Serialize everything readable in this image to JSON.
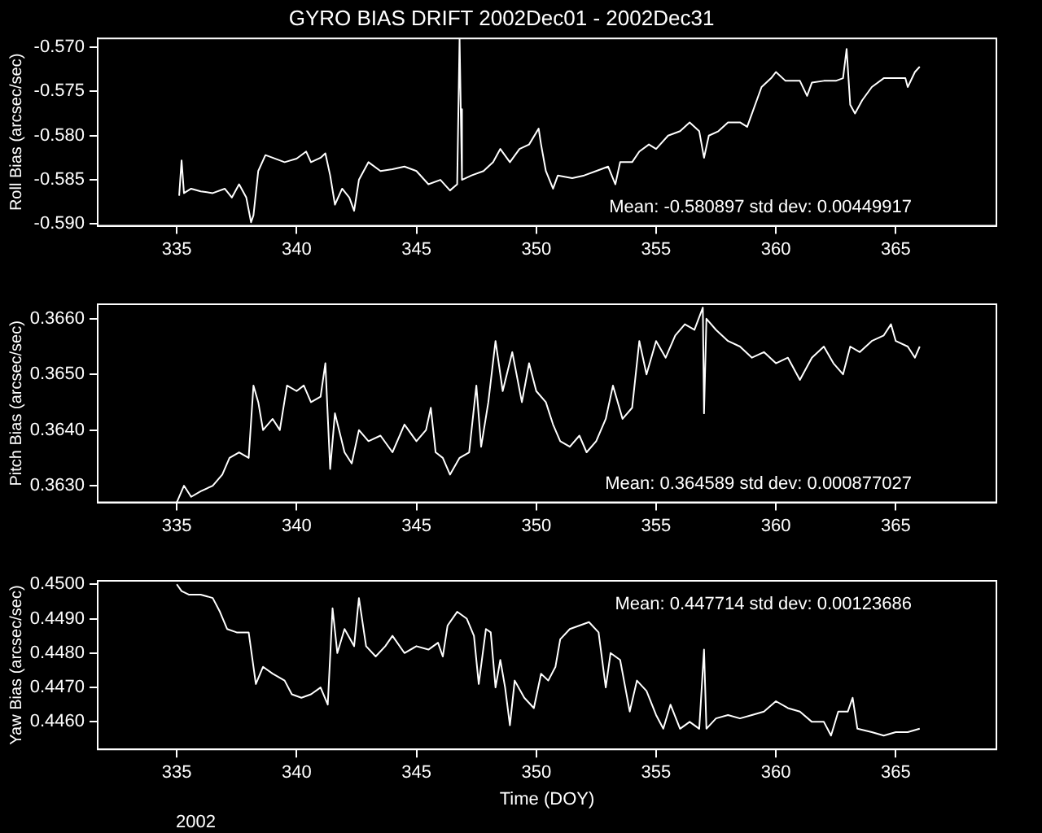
{
  "chart_data": [
    {
      "type": "line",
      "title": "GYRO BIAS DRIFT 2002Dec01 - 2002Dec31",
      "ylabel": "Roll Bias (arcsec/sec)",
      "color": "#ffffff",
      "marker": "none",
      "line_style": "solid",
      "xlim": [
        331.7,
        369.2
      ],
      "xticks": [
        335,
        340,
        345,
        350,
        355,
        360,
        365
      ],
      "ylim": [
        -0.5902,
        -0.569
      ],
      "yticks": [
        {
          "value": -0.59,
          "label": "-0.590"
        },
        {
          "value": -0.585,
          "label": "-0.585"
        },
        {
          "value": -0.58,
          "label": "-0.580"
        },
        {
          "value": -0.575,
          "label": "-0.575"
        },
        {
          "value": -0.57,
          "label": "-0.570"
        }
      ],
      "annotations": [
        "Mean: -0.580897 std dev: 0.00449917"
      ],
      "x": [
        335.1,
        335.2,
        335.3,
        335.6,
        336.0,
        336.5,
        337.0,
        337.3,
        337.6,
        337.9,
        338.1,
        338.2,
        338.4,
        338.7,
        339.0,
        339.5,
        340.0,
        340.4,
        340.6,
        341.0,
        341.2,
        341.4,
        341.6,
        341.9,
        342.2,
        342.4,
        342.6,
        343.0,
        343.5,
        344.0,
        344.5,
        345.0,
        345.5,
        346.0,
        346.4,
        346.7,
        346.8,
        346.85,
        346.9,
        347.3,
        347.8,
        348.2,
        348.5,
        348.9,
        349.3,
        349.7,
        350.1,
        350.2,
        350.4,
        350.7,
        350.9,
        351.5,
        352.0,
        352.5,
        353.0,
        353.3,
        353.5,
        354.0,
        354.3,
        354.7,
        355.0,
        355.5,
        356.0,
        356.4,
        356.8,
        357.0,
        357.2,
        357.6,
        358.0,
        358.5,
        358.8,
        359.0,
        359.4,
        359.8,
        360.0,
        360.4,
        361.0,
        361.3,
        361.5,
        362.0,
        362.5,
        362.8,
        362.95,
        363.1,
        363.3,
        363.6,
        364.0,
        364.5,
        365.0,
        365.4,
        365.5,
        365.8,
        366.0
      ],
      "values": [
        -0.5868,
        -0.5828,
        -0.5865,
        -0.586,
        -0.5863,
        -0.5865,
        -0.586,
        -0.587,
        -0.5855,
        -0.587,
        -0.5898,
        -0.589,
        -0.584,
        -0.5822,
        -0.5825,
        -0.583,
        -0.5826,
        -0.5818,
        -0.583,
        -0.5825,
        -0.582,
        -0.5845,
        -0.5878,
        -0.586,
        -0.587,
        -0.5885,
        -0.585,
        -0.583,
        -0.584,
        -0.5838,
        -0.5835,
        -0.584,
        -0.5855,
        -0.585,
        -0.5862,
        -0.5855,
        -0.569,
        -0.577,
        -0.585,
        -0.5845,
        -0.584,
        -0.583,
        -0.5815,
        -0.583,
        -0.5815,
        -0.581,
        -0.5792,
        -0.581,
        -0.584,
        -0.586,
        -0.5845,
        -0.5848,
        -0.5845,
        -0.584,
        -0.5835,
        -0.5855,
        -0.583,
        -0.583,
        -0.5818,
        -0.581,
        -0.5815,
        -0.58,
        -0.5795,
        -0.5785,
        -0.5795,
        -0.5825,
        -0.58,
        -0.5795,
        -0.5785,
        -0.5785,
        -0.579,
        -0.5775,
        -0.5745,
        -0.5735,
        -0.5728,
        -0.5738,
        -0.5738,
        -0.5755,
        -0.574,
        -0.5738,
        -0.5738,
        -0.5735,
        -0.5702,
        -0.5765,
        -0.5775,
        -0.576,
        -0.5745,
        -0.5735,
        -0.5735,
        -0.5735,
        -0.5745,
        -0.5728,
        -0.5722
      ]
    },
    {
      "type": "line",
      "ylabel": "Pitch Bias (arcsec/sec)",
      "color": "#ffffff",
      "marker": "none",
      "line_style": "solid",
      "xlim": [
        331.7,
        369.2
      ],
      "xticks": [
        335,
        340,
        345,
        350,
        355,
        360,
        365
      ],
      "ylim": [
        0.3627,
        0.36626
      ],
      "yticks": [
        {
          "value": 0.363,
          "label": "0.3630"
        },
        {
          "value": 0.364,
          "label": "0.3640"
        },
        {
          "value": 0.365,
          "label": "0.3650"
        },
        {
          "value": 0.366,
          "label": "0.3660"
        }
      ],
      "annotations": [
        "Mean: 0.364589 std dev: 0.000877027"
      ],
      "x": [
        335.0,
        335.3,
        335.6,
        336.0,
        336.5,
        336.9,
        337.2,
        337.6,
        338.0,
        338.2,
        338.4,
        338.6,
        339.0,
        339.3,
        339.6,
        340.0,
        340.3,
        340.6,
        341.0,
        341.2,
        341.4,
        341.6,
        342.0,
        342.3,
        342.6,
        343.0,
        343.5,
        344.0,
        344.5,
        345.0,
        345.4,
        345.6,
        345.8,
        346.1,
        346.4,
        346.8,
        347.2,
        347.5,
        347.7,
        348.0,
        348.3,
        348.6,
        349.0,
        349.4,
        349.7,
        350.0,
        350.4,
        350.7,
        351.0,
        351.4,
        351.8,
        352.1,
        352.5,
        352.9,
        353.2,
        353.6,
        354.0,
        354.3,
        354.6,
        355.0,
        355.4,
        355.8,
        356.2,
        356.6,
        356.95,
        357.0,
        357.1,
        357.5,
        358.0,
        358.5,
        359.0,
        359.5,
        360.0,
        360.5,
        361.0,
        361.5,
        362.0,
        362.4,
        362.8,
        363.1,
        363.5,
        364.0,
        364.5,
        364.8,
        365.0,
        365.5,
        365.8,
        366.0
      ],
      "values": [
        0.3627,
        0.363,
        0.3628,
        0.3629,
        0.363,
        0.3632,
        0.3635,
        0.3636,
        0.3635,
        0.3648,
        0.3645,
        0.364,
        0.3642,
        0.364,
        0.3648,
        0.3647,
        0.3648,
        0.3645,
        0.3646,
        0.3652,
        0.3633,
        0.3643,
        0.3636,
        0.3634,
        0.364,
        0.3638,
        0.3639,
        0.3636,
        0.3641,
        0.3638,
        0.364,
        0.3644,
        0.3636,
        0.3635,
        0.3632,
        0.3635,
        0.3636,
        0.3648,
        0.3637,
        0.3645,
        0.3656,
        0.3647,
        0.3654,
        0.3645,
        0.3652,
        0.3647,
        0.3645,
        0.3641,
        0.3638,
        0.3637,
        0.3639,
        0.3636,
        0.3638,
        0.3642,
        0.3648,
        0.3642,
        0.3644,
        0.3656,
        0.365,
        0.3656,
        0.3653,
        0.3657,
        0.3659,
        0.3658,
        0.3662,
        0.3643,
        0.366,
        0.3658,
        0.3656,
        0.3655,
        0.3653,
        0.3654,
        0.3652,
        0.3653,
        0.3649,
        0.3653,
        0.3655,
        0.3652,
        0.365,
        0.3655,
        0.3654,
        0.3656,
        0.3657,
        0.3659,
        0.3656,
        0.3655,
        0.3653,
        0.3655
      ]
    },
    {
      "type": "line",
      "ylabel": "Yaw Bias (arcsec/sec)",
      "xlabel": "Time (DOY)",
      "color": "#ffffff",
      "marker": "none",
      "line_style": "solid",
      "xlim": [
        331.7,
        369.2
      ],
      "xticks": [
        335,
        340,
        345,
        350,
        355,
        360,
        365
      ],
      "ylim": [
        0.4452,
        0.4501
      ],
      "yticks": [
        {
          "value": 0.446,
          "label": "0.4460"
        },
        {
          "value": 0.447,
          "label": "0.4470"
        },
        {
          "value": 0.448,
          "label": "0.4480"
        },
        {
          "value": 0.449,
          "label": "0.4490"
        },
        {
          "value": 0.45,
          "label": "0.4500"
        }
      ],
      "annotations": [
        "Mean: 0.447714 std dev: 0.00123686",
        "2002"
      ],
      "x": [
        335.0,
        335.2,
        335.5,
        336.0,
        336.5,
        336.8,
        337.1,
        337.5,
        338.0,
        338.3,
        338.6,
        339.0,
        339.5,
        339.8,
        340.2,
        340.6,
        341.0,
        341.3,
        341.5,
        341.7,
        342.0,
        342.4,
        342.6,
        342.9,
        343.3,
        343.7,
        344.0,
        344.5,
        345.0,
        345.5,
        345.9,
        346.1,
        346.3,
        346.7,
        347.1,
        347.4,
        347.6,
        347.9,
        348.1,
        348.3,
        348.5,
        348.7,
        348.9,
        349.1,
        349.5,
        349.9,
        350.2,
        350.5,
        350.8,
        351.0,
        351.4,
        351.8,
        352.2,
        352.6,
        352.9,
        353.1,
        353.5,
        353.9,
        354.2,
        354.6,
        355.0,
        355.3,
        355.6,
        356.0,
        356.4,
        356.8,
        357.0,
        357.1,
        357.5,
        358.0,
        358.5,
        359.0,
        359.5,
        360.0,
        360.5,
        361.0,
        361.5,
        362.0,
        362.3,
        362.6,
        363.0,
        363.2,
        363.4,
        364.0,
        364.5,
        365.0,
        365.5,
        366.0
      ],
      "values": [
        0.45,
        0.4498,
        0.4497,
        0.4497,
        0.4496,
        0.4492,
        0.4487,
        0.4486,
        0.4486,
        0.4471,
        0.4476,
        0.4474,
        0.4472,
        0.4468,
        0.4467,
        0.4468,
        0.447,
        0.4465,
        0.4493,
        0.448,
        0.4487,
        0.4482,
        0.4496,
        0.4482,
        0.4479,
        0.4482,
        0.4485,
        0.448,
        0.4482,
        0.4481,
        0.4483,
        0.4479,
        0.4488,
        0.4492,
        0.449,
        0.4485,
        0.4471,
        0.4487,
        0.4486,
        0.447,
        0.4478,
        0.447,
        0.4459,
        0.4472,
        0.4467,
        0.4464,
        0.4474,
        0.4472,
        0.4476,
        0.4484,
        0.4487,
        0.4488,
        0.4489,
        0.4486,
        0.447,
        0.448,
        0.4478,
        0.4463,
        0.4472,
        0.4469,
        0.4462,
        0.4458,
        0.4465,
        0.4458,
        0.446,
        0.4458,
        0.4481,
        0.4458,
        0.4461,
        0.4462,
        0.4461,
        0.4462,
        0.4463,
        0.4466,
        0.4464,
        0.4463,
        0.446,
        0.446,
        0.4456,
        0.4463,
        0.4463,
        0.4467,
        0.4458,
        0.4457,
        0.4456,
        0.4457,
        0.4457,
        0.4458
      ]
    }
  ]
}
